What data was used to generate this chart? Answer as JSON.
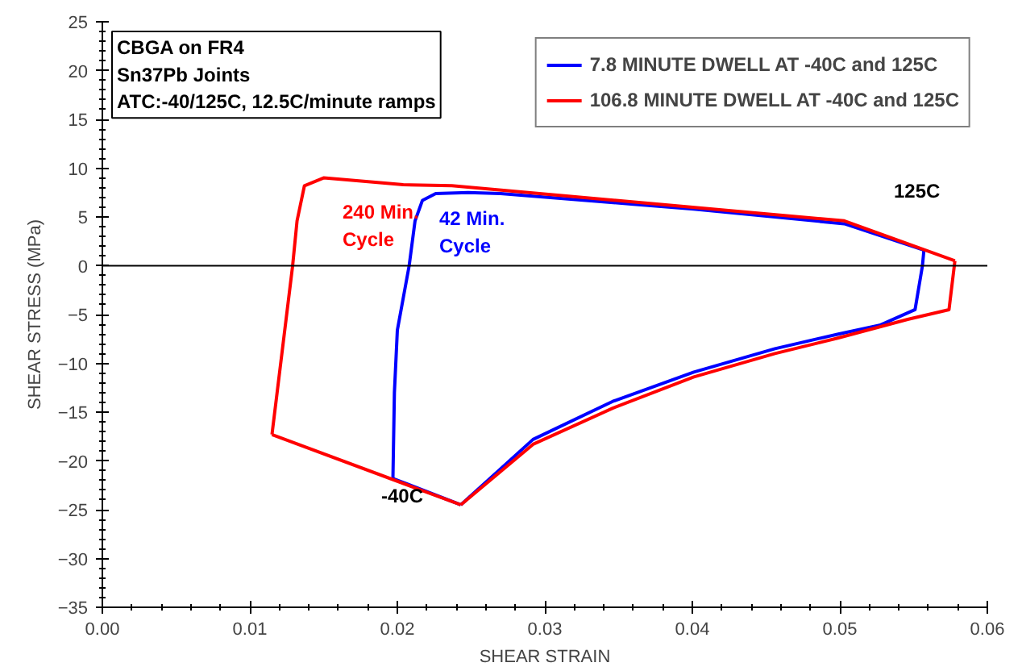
{
  "chart_data": {
    "type": "line",
    "xlabel": "SHEAR STRAIN",
    "ylabel": "SHEAR STRESS (MPa)",
    "xlim": [
      0,
      0.06
    ],
    "ylim": [
      -35,
      25
    ],
    "xticks": [
      {
        "value": 0,
        "label": "0.00"
      },
      {
        "value": 0.01,
        "label": "0.01"
      },
      {
        "value": 0.02,
        "label": "0.02"
      },
      {
        "value": 0.03,
        "label": "0.03"
      },
      {
        "value": 0.04,
        "label": "0.04"
      },
      {
        "value": 0.05,
        "label": "0.05"
      },
      {
        "value": 0.06,
        "label": "0.06"
      }
    ],
    "yticks": [
      -35,
      -30,
      -25,
      -20,
      -15,
      -10,
      -5,
      0,
      5,
      10,
      15,
      20,
      25
    ],
    "ref_lines": [
      {
        "axis": "y",
        "value": 0,
        "label": null,
        "color": "#000000"
      }
    ],
    "grid": false,
    "legend": "top right",
    "marker": "none",
    "line_style": "solid",
    "series": [
      {
        "name": "7.8 MINUTE DWELL AT -40C and 125C",
        "color": "#0000ff",
        "x": [
          0.0197,
          0.0198,
          0.02,
          0.0208,
          0.0212,
          0.0217,
          0.0226,
          0.0248,
          0.027,
          0.0401,
          0.0503,
          0.0557
        ],
        "values": [
          -21.8,
          -13,
          -6.6,
          0,
          4.6,
          6.7,
          7.4,
          7.5,
          7.4,
          5.8,
          4.3,
          1.6
        ]
      },
      {
        "color": "#0000ff",
        "x": [
          0.0243,
          0.0292,
          0.0346,
          0.0401,
          0.0456,
          0.0499,
          0.0527,
          0.0551,
          0.0556,
          0.0557
        ],
        "values": [
          -24.5,
          -17.8,
          -13.9,
          -10.9,
          -8.5,
          -7.0,
          -6.1,
          -4.5,
          0,
          1.6
        ]
      },
      {
        "color": "#0000ff",
        "x": [
          0.0197,
          0.0243
        ],
        "values": [
          -21.8,
          -24.5
        ]
      },
      {
        "name": "106.8 MINUTE DWELL AT -40C and 125C",
        "color": "#ff0000",
        "x": [
          0.0115,
          0.0129,
          0.0132,
          0.0137,
          0.015,
          0.0166,
          0.0204,
          0.0237,
          0.0503,
          0.0578
        ],
        "values": [
          -17.3,
          0,
          4.6,
          8.2,
          9.0,
          8.8,
          8.3,
          8.2,
          4.6,
          0.5
        ]
      },
      {
        "color": "#ff0000",
        "x": [
          0.0243,
          0.0292,
          0.0346,
          0.0401,
          0.0456,
          0.0499,
          0.0546,
          0.0574,
          0.0578
        ],
        "values": [
          -24.5,
          -18.3,
          -14.6,
          -11.4,
          -9.0,
          -7.4,
          -5.5,
          -4.5,
          0.5
        ]
      },
      {
        "color": "#ff0000",
        "x": [
          0.0115,
          0.0243
        ],
        "values": [
          -17.3,
          -24.5
        ]
      }
    ],
    "annotations": [
      "42 Min.\nCycle",
      "240 Min.\nCycle",
      "-40C",
      "125C",
      "CBGA on FR4\nSn37Pb Joints\nATC:-40/125C, 12.5C/minute ramps"
    ]
  }
}
